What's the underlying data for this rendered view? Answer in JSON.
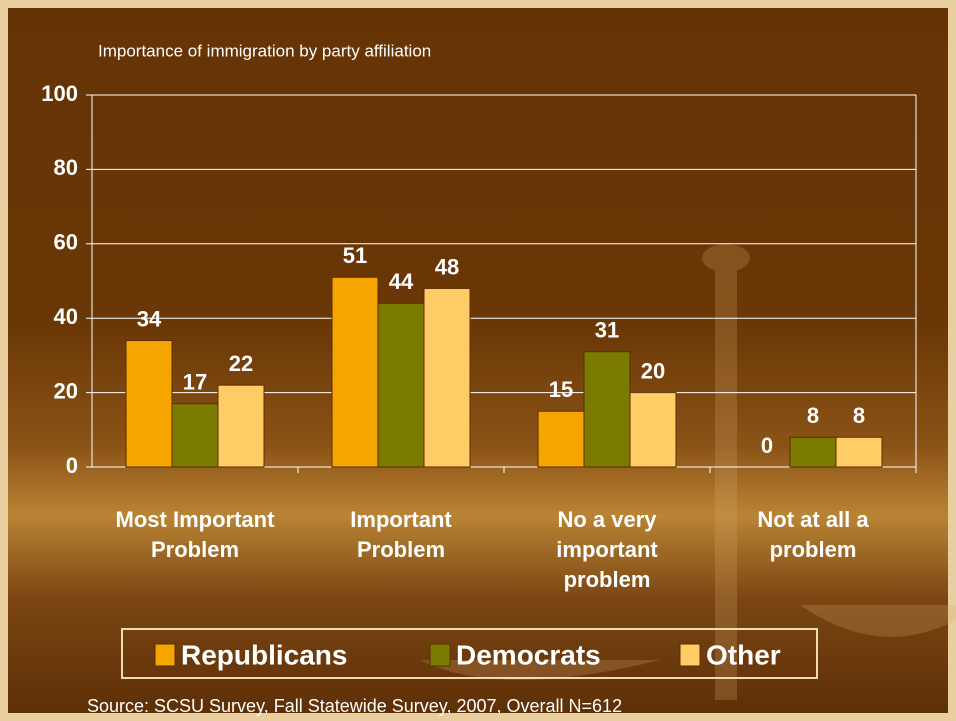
{
  "chart_data": {
    "type": "bar",
    "title": "Importance of immigration by party affiliation",
    "categories": [
      "Most Important Problem",
      "Important Problem",
      "No a very important problem",
      "Not at all a problem"
    ],
    "series": [
      {
        "name": "Republicans",
        "color": "#f5a400",
        "values": [
          34,
          51,
          15,
          0
        ]
      },
      {
        "name": "Democrats",
        "color": "#7b7b00",
        "values": [
          17,
          44,
          31,
          8
        ]
      },
      {
        "name": "Other",
        "color": "#ffcc66",
        "values": [
          22,
          48,
          20,
          8
        ]
      }
    ],
    "ylim": [
      0,
      100
    ],
    "yticks": [
      0,
      20,
      40,
      60,
      80,
      100
    ],
    "grid": true,
    "legend": "bottom",
    "source": "Source: SCSU Survey, Fall Statewide Survey, 2007, Overall N=612"
  }
}
